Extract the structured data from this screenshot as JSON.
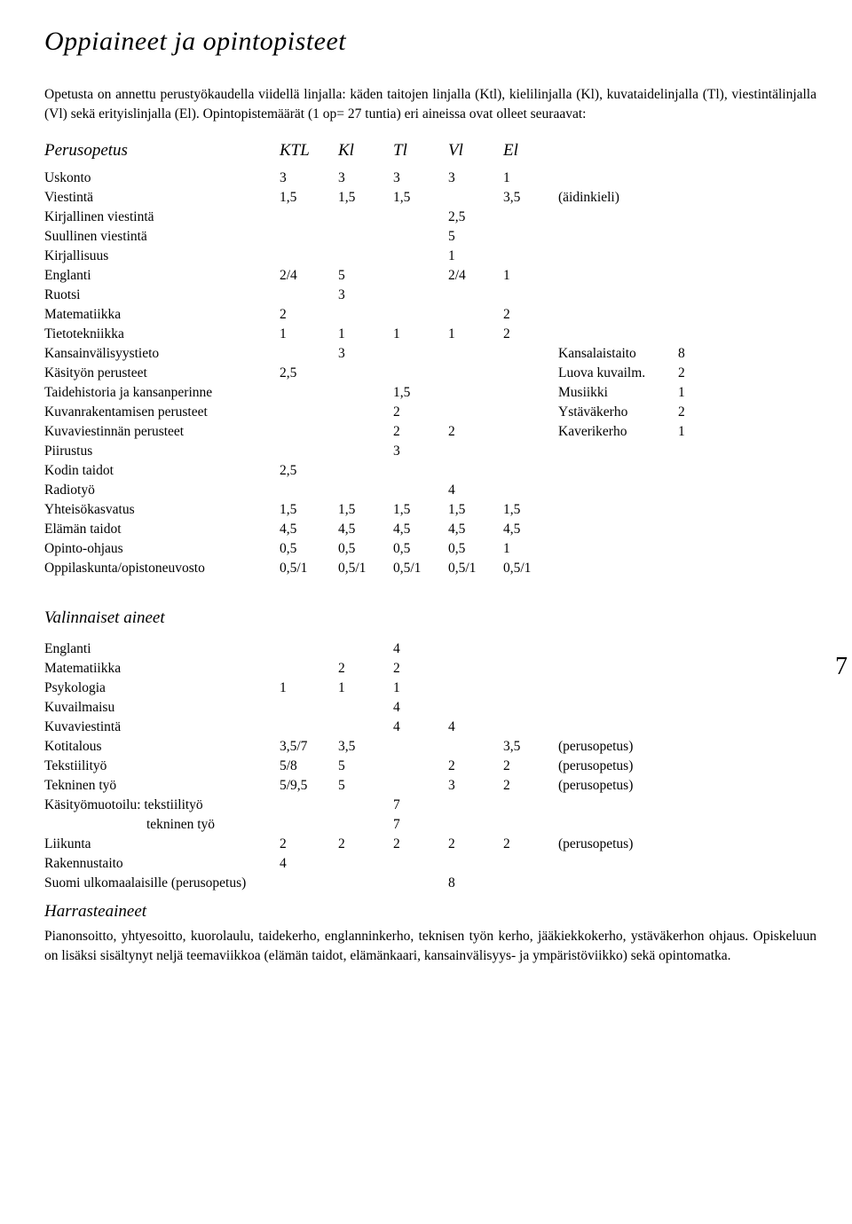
{
  "title": "Oppiaineet ja opintopisteet",
  "intro": "Opetusta on annettu perustyökaudella viidellä linjalla: käden taitojen linjalla (Ktl), kielilinjalla (Kl), kuvataidelinjalla (Tl), viestintälinjalla (Vl) sekä erityislinjalla (El). Opintopistemäärät (1 op= 27 tuntia) eri aineissa ovat olleet seuraavat:",
  "sections": {
    "perusopetus": {
      "heading": "Perusopetus",
      "cols": [
        "KTL",
        "Kl",
        "Tl",
        "Vl",
        "El"
      ]
    },
    "valinnaiset": {
      "heading": "Valinnaiset aineet"
    },
    "harrasteaineet": {
      "heading": "Harrasteaineet",
      "text": "Pianonsoitto, yhtyesoitto, kuorolaulu, taidekerho, englanninkerho, teknisen työn kerho, jääkiekkokerho, ystäväkerhon ohjaus. Opiskeluun on lisäksi sisältynyt neljä teemaviikkoa (elämän taidot, elämänkaari, kansainvälisyys- ja ympäristöviikko) sekä opintomatka."
    }
  },
  "rows1": [
    {
      "l": "Uskonto",
      "v": [
        "3",
        "3",
        "3",
        "3",
        "1"
      ],
      "n": "",
      "extra": "",
      "ev": ""
    },
    {
      "l": "Viestintä",
      "v": [
        "1,5",
        "1,5",
        "1,5",
        "",
        "3,5"
      ],
      "n": "(äidinkieli)",
      "extra": "",
      "ev": ""
    },
    {
      "l": "Kirjallinen viestintä",
      "v": [
        "",
        "",
        "",
        "2,5",
        ""
      ],
      "n": "",
      "extra": "",
      "ev": ""
    },
    {
      "l": "Suullinen viestintä",
      "v": [
        "",
        "",
        "",
        "5",
        ""
      ],
      "n": "",
      "extra": "",
      "ev": ""
    },
    {
      "l": "Kirjallisuus",
      "v": [
        "",
        "",
        "",
        "1",
        ""
      ],
      "n": "",
      "extra": "",
      "ev": ""
    },
    {
      "l": "Englanti",
      "v": [
        "2/4",
        "5",
        "",
        "2/4",
        "1"
      ],
      "n": "",
      "extra": "",
      "ev": ""
    },
    {
      "l": "Ruotsi",
      "v": [
        "",
        "3",
        "",
        "",
        ""
      ],
      "n": "",
      "extra": "",
      "ev": ""
    },
    {
      "l": "Matematiikka",
      "v": [
        "2",
        "",
        "",
        "",
        "2"
      ],
      "n": "",
      "extra": "",
      "ev": ""
    },
    {
      "l": "Tietotekniikka",
      "v": [
        "1",
        "1",
        "1",
        "1",
        "2"
      ],
      "n": "",
      "extra": "",
      "ev": ""
    },
    {
      "l": "Kansainvälisyystieto",
      "v": [
        "",
        "3",
        "",
        "",
        ""
      ],
      "n": "",
      "extra": "Kansalaistaito",
      "ev": "8"
    },
    {
      "l": "Käsityön perusteet",
      "v": [
        "2,5",
        "",
        "",
        "",
        ""
      ],
      "n": "",
      "extra": "Luova kuvailm.",
      "ev": "2"
    },
    {
      "l": "Taidehistoria ja kansanperinne",
      "v": [
        "",
        "",
        "1,5",
        "",
        ""
      ],
      "n": "",
      "extra": "Musiikki",
      "ev": "1"
    },
    {
      "l": "Kuvanrakentamisen perusteet",
      "v": [
        "",
        "",
        "2",
        "",
        ""
      ],
      "n": "",
      "extra": "Ystäväkerho",
      "ev": "2"
    },
    {
      "l": "Kuvaviestinnän perusteet",
      "v": [
        "",
        "",
        "2",
        "2",
        ""
      ],
      "n": "",
      "extra": "Kaverikerho",
      "ev": "1"
    },
    {
      "l": "Piirustus",
      "v": [
        "",
        "",
        "3",
        "",
        ""
      ],
      "n": "",
      "extra": "",
      "ev": ""
    },
    {
      "l": "Kodin taidot",
      "v": [
        "2,5",
        "",
        "",
        "",
        ""
      ],
      "n": "",
      "extra": "",
      "ev": ""
    },
    {
      "l": "Radiotyö",
      "v": [
        "",
        "",
        "",
        "4",
        ""
      ],
      "n": "",
      "extra": "",
      "ev": ""
    },
    {
      "l": "Yhteisökasvatus",
      "v": [
        "1,5",
        "1,5",
        "1,5",
        "1,5",
        "1,5"
      ],
      "n": "",
      "extra": "",
      "ev": ""
    },
    {
      "l": "Elämän taidot",
      "v": [
        "4,5",
        "4,5",
        "4,5",
        "4,5",
        "4,5"
      ],
      "n": "",
      "extra": "",
      "ev": ""
    },
    {
      "l": "Opinto-ohjaus",
      "v": [
        "0,5",
        "0,5",
        "0,5",
        "0,5",
        "1"
      ],
      "n": "",
      "extra": "",
      "ev": ""
    },
    {
      "l": "Oppilaskunta/opistoneuvosto",
      "v": [
        "0,5/1",
        "0,5/1",
        "0,5/1",
        "0,5/1",
        "0,5/1"
      ],
      "n": "",
      "extra": "",
      "ev": ""
    }
  ],
  "rows2": [
    {
      "l": "Englanti",
      "v": [
        "",
        "",
        "4",
        "",
        ""
      ],
      "n": "",
      "indent": false
    },
    {
      "l": "Matematiikka",
      "v": [
        "",
        "2",
        "2",
        "",
        ""
      ],
      "n": "",
      "indent": false
    },
    {
      "l": "Psykologia",
      "v": [
        "1",
        "1",
        "1",
        "",
        ""
      ],
      "n": "",
      "indent": false
    },
    {
      "l": "Kuvailmaisu",
      "v": [
        "",
        "",
        "4",
        "",
        ""
      ],
      "n": "",
      "indent": false
    },
    {
      "l": "Kuvaviestintä",
      "v": [
        "",
        "",
        "4",
        "4",
        ""
      ],
      "n": "",
      "indent": false
    },
    {
      "l": "Kotitalous",
      "v": [
        "3,5/7",
        "3,5",
        "",
        "",
        "3,5"
      ],
      "n": "(perusopetus)",
      "indent": false
    },
    {
      "l": "Tekstiilityö",
      "v": [
        "5/8",
        "5",
        "",
        "2",
        "2"
      ],
      "n": "(perusopetus)",
      "indent": false
    },
    {
      "l": "Tekninen työ",
      "v": [
        "5/9,5",
        "5",
        "",
        "3",
        "2"
      ],
      "n": "(perusopetus)",
      "indent": false
    },
    {
      "l": "Käsityömuotoilu: tekstiilityö",
      "v": [
        "",
        "",
        "7",
        "",
        ""
      ],
      "n": "",
      "indent": false
    },
    {
      "l": "tekninen työ",
      "v": [
        "",
        "",
        "7",
        "",
        ""
      ],
      "n": "",
      "indent": true
    },
    {
      "l": "Liikunta",
      "v": [
        "2",
        "2",
        "2",
        "2",
        "2"
      ],
      "n": "(perusopetus)",
      "indent": false
    },
    {
      "l": "Rakennustaito",
      "v": [
        "4",
        "",
        "",
        "",
        ""
      ],
      "n": "",
      "indent": false
    },
    {
      "l": "Suomi ulkomaalaisille (perusopetus)",
      "v": [
        "",
        "",
        "",
        "8",
        ""
      ],
      "n": "",
      "indent": false
    }
  ],
  "pageNumber": "7",
  "colors": {
    "text": "#000000",
    "background": "#ffffff"
  }
}
